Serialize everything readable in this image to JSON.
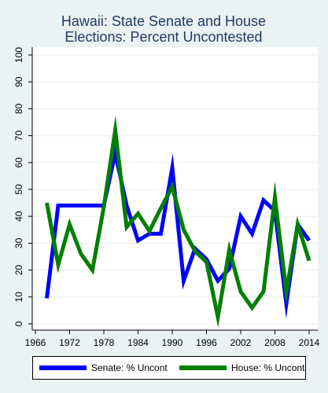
{
  "chart_data": {
    "type": "line",
    "title_lines": [
      "Hawaii: State Senate and House",
      "Elections: Percent Uncontested"
    ],
    "xlabel": "",
    "ylabel": "",
    "xlim": [
      1966,
      2014
    ],
    "ylim": [
      0,
      100
    ],
    "x_ticks": [
      1966,
      1972,
      1978,
      1984,
      1990,
      1996,
      2002,
      2008,
      2014
    ],
    "y_ticks": [
      0,
      10,
      20,
      30,
      40,
      50,
      60,
      70,
      80,
      90,
      100
    ],
    "grid": true,
    "legend_position": "bottom",
    "series": [
      {
        "name": "Senate: % Uncont",
        "color": "#0000ff",
        "x": [
          1968,
          1970,
          1972,
          1974,
          1976,
          1978,
          1980,
          1982,
          1984,
          1986,
          1988,
          1990,
          1992,
          1994,
          1996,
          1998,
          2000,
          2002,
          2004,
          2006,
          2008,
          2010,
          2012,
          2014
        ],
        "y": [
          9.5,
          44,
          44,
          44,
          44,
          44,
          63.5,
          44,
          31,
          33.5,
          33.5,
          58,
          16,
          28,
          24,
          16,
          20.5,
          40,
          33.5,
          46,
          42,
          7.5,
          37,
          31
        ]
      },
      {
        "name": "House: % Uncont",
        "color": "#007f00",
        "x": [
          1968,
          1970,
          1972,
          1974,
          1976,
          1978,
          1980,
          1982,
          1984,
          1986,
          1988,
          1990,
          1992,
          1994,
          1996,
          1998,
          2000,
          2002,
          2004,
          2006,
          2008,
          2010,
          2012,
          2014
        ],
        "y": [
          45,
          22,
          37,
          26,
          20,
          43.5,
          72,
          36,
          41,
          34.5,
          43,
          51,
          35,
          27,
          23,
          2.5,
          27.5,
          12,
          6,
          12,
          47,
          12,
          37,
          23.5
        ]
      }
    ]
  }
}
